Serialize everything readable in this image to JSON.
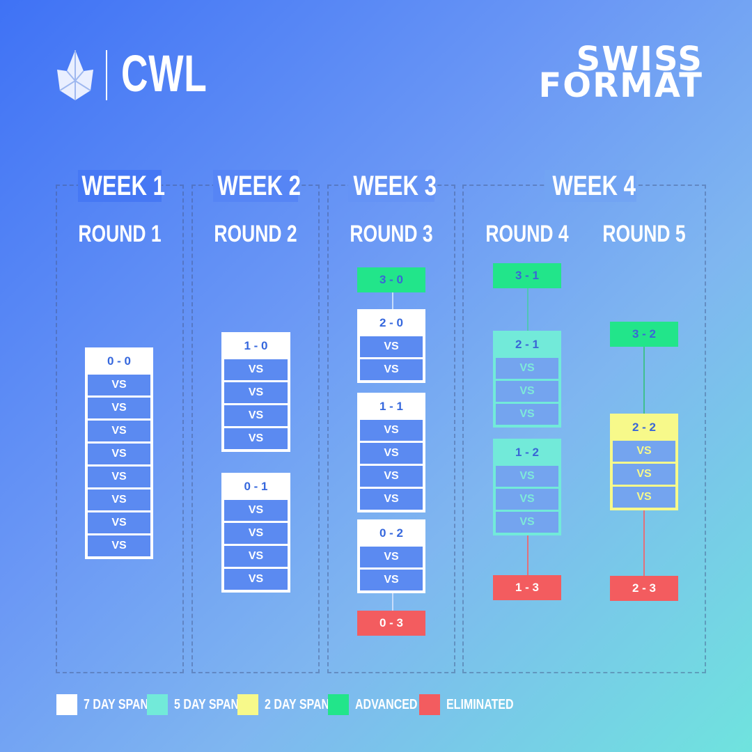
{
  "brand": {
    "name": "CWL",
    "logo_icon": "crown-flame-logo"
  },
  "title": {
    "line1": "SWISS",
    "line2": "FORMAT"
  },
  "weeks": [
    {
      "label": "WEEK 1",
      "rounds": [
        "ROUND 1"
      ]
    },
    {
      "label": "WEEK 2",
      "rounds": [
        "ROUND 2"
      ]
    },
    {
      "label": "WEEK 3",
      "rounds": [
        "ROUND 3"
      ]
    },
    {
      "label": "WEEK 4",
      "rounds": [
        "ROUND 4",
        "ROUND 5"
      ]
    }
  ],
  "groups": {
    "r1_00": {
      "header": "0 - 0",
      "rows": [
        "VS",
        "VS",
        "VS",
        "VS",
        "VS",
        "VS",
        "VS",
        "VS"
      ]
    },
    "r2_10": {
      "header": "1 - 0",
      "rows": [
        "VS",
        "VS",
        "VS",
        "VS"
      ]
    },
    "r2_01": {
      "header": "0 - 1",
      "rows": [
        "VS",
        "VS",
        "VS",
        "VS"
      ]
    },
    "r3_20": {
      "header": "2 - 0",
      "rows": [
        "VS",
        "VS"
      ]
    },
    "r3_11": {
      "header": "1 - 1",
      "rows": [
        "VS",
        "VS",
        "VS",
        "VS"
      ]
    },
    "r3_02": {
      "header": "0 - 2",
      "rows": [
        "VS",
        "VS"
      ]
    },
    "r4_21": {
      "header": "2 - 1",
      "rows": [
        "VS",
        "VS",
        "VS"
      ]
    },
    "r4_12": {
      "header": "1 - 2",
      "rows": [
        "VS",
        "VS",
        "VS"
      ]
    },
    "r5_22": {
      "header": "2 - 2",
      "rows": [
        "VS",
        "VS",
        "VS"
      ]
    }
  },
  "badges": {
    "adv_30": "3 - 0",
    "elim_03": "0 - 3",
    "adv_31": "3 - 1",
    "elim_13": "1 - 3",
    "adv_32": "3 - 2",
    "elim_23": "2 - 3"
  },
  "legend": [
    {
      "label": "7 DAY SPAN",
      "color": "#ffffff"
    },
    {
      "label": "5 DAY SPAN",
      "color": "#72ead9"
    },
    {
      "label": "2 DAY SPAN",
      "color": "#f7f98a"
    },
    {
      "label": "ADVANCED",
      "color": "#22e58a"
    },
    {
      "label": "ELIMINATED",
      "color": "#f35c5f"
    }
  ]
}
